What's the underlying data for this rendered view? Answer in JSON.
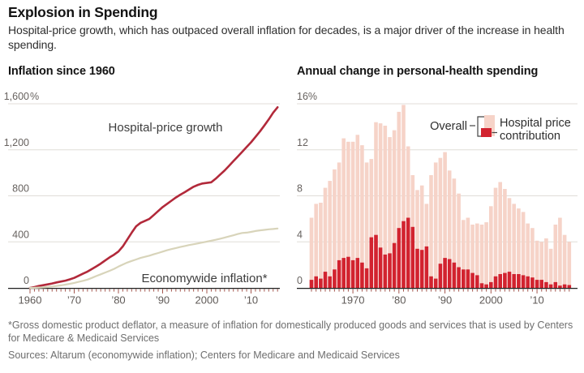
{
  "page": {
    "title": "Explosion in Spending",
    "subtitle": "Hospital-price growth, which has outpaced overall inflation for decades, is a major driver of the increase in health spending."
  },
  "footnote": "*Gross domestic product deflator, a measure of inflation for domestically produced goods and services that is used by Centers for Medicare & Medicaid Services",
  "sources": "Sources: Altarum (economywide inflation); Centers for Medicare and Medicaid Services",
  "colors": {
    "hospital_line": "#b2293a",
    "economywide_line": "#d8d4ba",
    "overall_bar": "#f6d3c8",
    "contribution_bar": "#d2232f",
    "gridline": "#e0ddd8",
    "axis": "#1f1f1f",
    "axis_tick": "#a3564d",
    "text_dark": "#141414",
    "text_label": "#67625f",
    "text_footnote": "#6e6e6e"
  },
  "chart_data": [
    {
      "type": "line",
      "title": "Inflation since 1960",
      "x_start": 1960,
      "x_end": 2016,
      "x_step": 1,
      "ylim": [
        0,
        1600
      ],
      "yticks": [
        0,
        400,
        800,
        1200,
        1600
      ],
      "ytick_labels": [
        "0",
        "400",
        "800",
        "1,200",
        "1,600%"
      ],
      "xticks": [
        [
          "1960",
          1960
        ],
        [
          "’70",
          1970
        ],
        [
          "’80",
          1980
        ],
        [
          "’90",
          1990
        ],
        [
          "2000",
          2000
        ],
        [
          "’10",
          2010
        ]
      ],
      "grid": true,
      "legend_position": "annotations-on-chart",
      "annotations": [
        {
          "text": "Hospital-price growth"
        },
        {
          "text": "Economywide inflation*"
        }
      ],
      "series": [
        {
          "name": "Hospital-price growth",
          "color": "#b2293a",
          "values": [
            0,
            7,
            16,
            23,
            30,
            38,
            47,
            55,
            63,
            74,
            87,
            105,
            124,
            142,
            164,
            187,
            211,
            238,
            265,
            288,
            316,
            360,
            420,
            480,
            535,
            565,
            582,
            600,
            633,
            668,
            702,
            730,
            758,
            785,
            810,
            832,
            856,
            879,
            895,
            907,
            912,
            918,
            949,
            985,
            1019,
            1060,
            1101,
            1142,
            1183,
            1224,
            1265,
            1312,
            1359,
            1411,
            1464,
            1523,
            1570
          ]
        },
        {
          "name": "Economywide inflation*",
          "color": "#d8d4ba",
          "values": [
            0,
            1,
            3,
            5,
            8,
            12,
            17,
            22,
            28,
            35,
            43,
            52,
            61,
            72,
            87,
            103,
            118,
            133,
            148,
            165,
            185,
            203,
            220,
            234,
            247,
            260,
            270,
            280,
            292,
            303,
            315,
            327,
            337,
            346,
            355,
            364,
            372,
            379,
            386,
            394,
            402,
            410,
            418,
            427,
            436,
            447,
            457,
            468,
            477,
            480,
            486,
            494,
            500,
            504,
            509,
            512,
            516
          ]
        }
      ]
    },
    {
      "type": "bar",
      "title": "Annual change in personal-health spending",
      "years": [
        1961,
        1962,
        1963,
        1964,
        1965,
        1966,
        1967,
        1968,
        1969,
        1970,
        1971,
        1972,
        1973,
        1974,
        1975,
        1976,
        1977,
        1978,
        1979,
        1980,
        1981,
        1982,
        1983,
        1984,
        1985,
        1986,
        1987,
        1988,
        1989,
        1990,
        1991,
        1992,
        1993,
        1994,
        1995,
        1996,
        1997,
        1998,
        1999,
        2000,
        2001,
        2002,
        2003,
        2004,
        2005,
        2006,
        2007,
        2008,
        2009,
        2010,
        2011,
        2012,
        2013,
        2014,
        2015,
        2016,
        2017
      ],
      "ylim": [
        0,
        16
      ],
      "yticks": [
        0,
        4,
        8,
        12,
        16
      ],
      "ytick_labels": [
        "0",
        "4",
        "8",
        "12",
        "16%"
      ],
      "xticks": [
        [
          "1970",
          1970
        ],
        [
          "’80",
          1980
        ],
        [
          "’90",
          1990
        ],
        [
          "2000",
          2000
        ],
        [
          "’10",
          2010
        ]
      ],
      "grid": true,
      "legend": {
        "overall_label": "Overall",
        "contribution_label": "Hospital price contribution",
        "lines": [
          "Hospital price",
          "contribution"
        ]
      },
      "series": [
        {
          "name": "Overall",
          "color": "#f6d3c8",
          "values": [
            6.1,
            7.3,
            7.4,
            8.7,
            9.3,
            10.3,
            10.9,
            13.0,
            12.7,
            12.7,
            13.3,
            12.4,
            10.9,
            11.2,
            14.4,
            14.3,
            14.1,
            13.1,
            13.7,
            15.3,
            15.9,
            12.3,
            9.8,
            8.5,
            8.9,
            7.3,
            9.8,
            10.9,
            11.3,
            11.8,
            10.2,
            9.5,
            8.2,
            5.9,
            6.1,
            5.5,
            5.6,
            5.5,
            5.7,
            7.1,
            8.7,
            9.2,
            8.6,
            7.8,
            7.3,
            6.9,
            6.6,
            5.6,
            5.2,
            4.1,
            4.0,
            4.3,
            3.4,
            5.5,
            6.1,
            4.6,
            4.0
          ]
        },
        {
          "name": "Hospital price contribution",
          "color": "#d2232f",
          "values": [
            0.7,
            1.0,
            0.8,
            1.4,
            1.0,
            1.6,
            2.4,
            2.6,
            2.7,
            2.4,
            2.6,
            2.2,
            1.7,
            4.4,
            4.6,
            3.5,
            2.9,
            3.0,
            3.9,
            5.2,
            5.8,
            6.1,
            5.3,
            3.4,
            3.3,
            3.6,
            1.0,
            0.8,
            2.1,
            2.6,
            2.5,
            2.2,
            1.8,
            1.6,
            1.6,
            1.3,
            1.1,
            0.4,
            0.3,
            0.5,
            1.0,
            1.2,
            1.3,
            1.4,
            1.2,
            1.2,
            1.1,
            1.0,
            0.9,
            0.7,
            0.7,
            0.5,
            0.3,
            0.5,
            0.2,
            0.3,
            0.25
          ]
        }
      ]
    }
  ]
}
